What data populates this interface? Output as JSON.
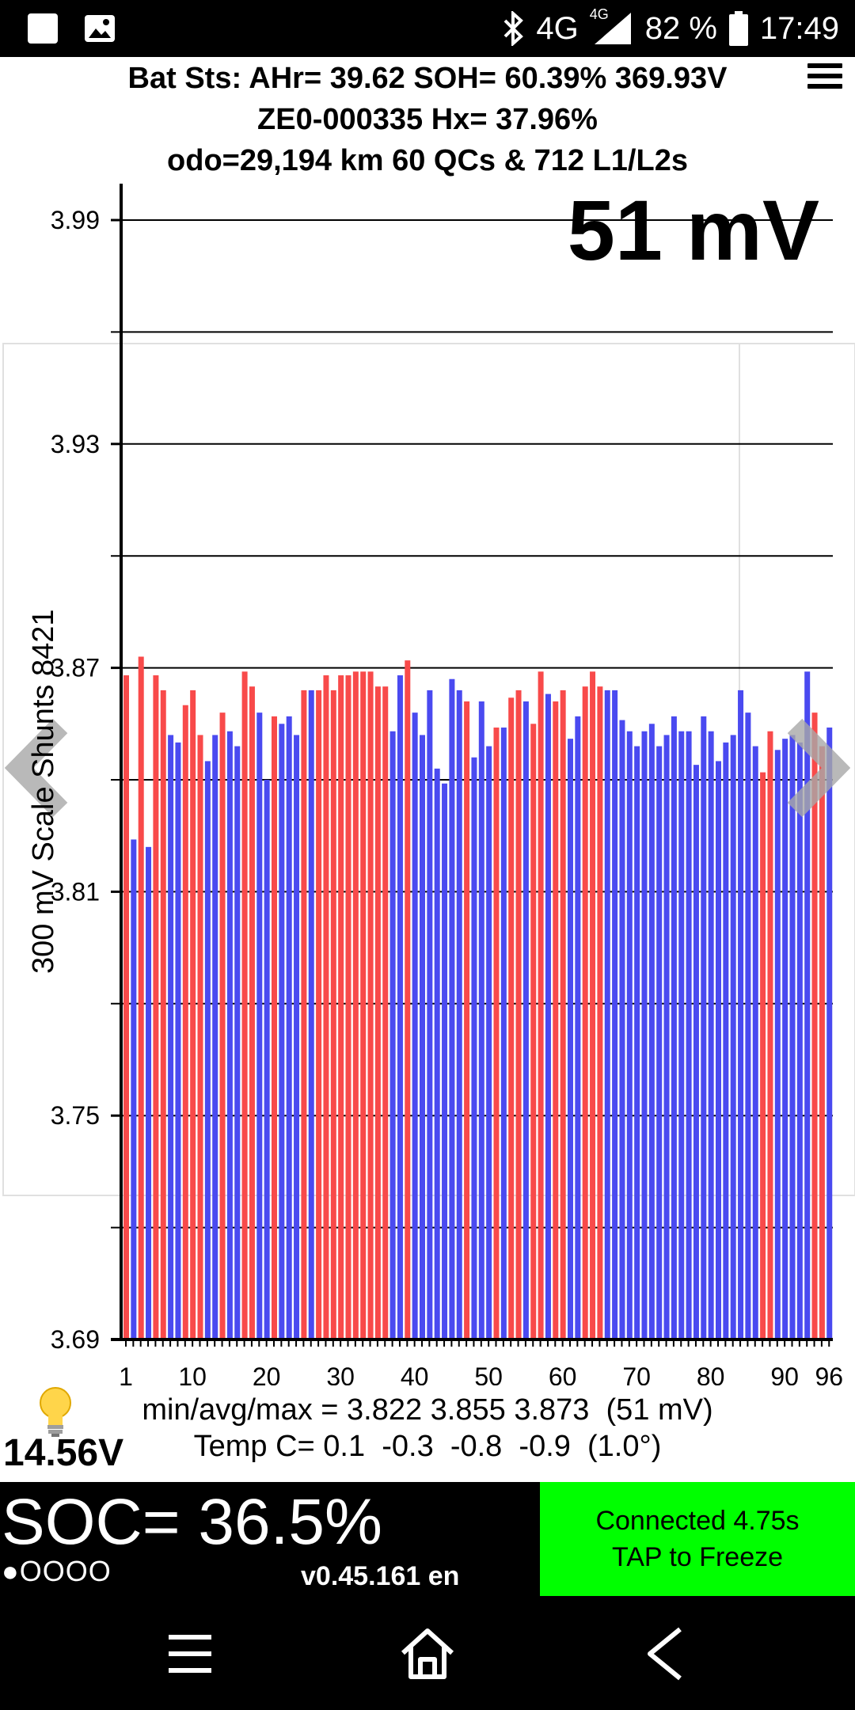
{
  "status_bar": {
    "network": "4G",
    "network_small": "4G",
    "battery": "82 %",
    "time": "17:49",
    "icons": [
      "notification-square-icon",
      "image-icon",
      "bluetooth-icon",
      "signal-icon",
      "battery-icon"
    ]
  },
  "header": {
    "line1": "Bat Sts: AHr= 39.62 SOH= 60.39% 369.93V",
    "line2": "ZE0-000335   Hx= 37.96%",
    "line3": "odo=29,194 km 60 QCs & 712 L1/L2s"
  },
  "spread_display": "51 mV",
  "stats": {
    "minavgmax": "min/avg/max = 3.822 3.855 3.873  (51 mV)",
    "temp": "Temp C= 0.1  -0.3  -0.8  -0.9  (1.0°)"
  },
  "aux_voltage": "14.56V",
  "soc": "SOC= 36.5%",
  "dots": "●OOOO",
  "version": "v0.45.161 en",
  "connection": {
    "line1": "Connected 4.75s",
    "line2": "TAP to Freeze",
    "color": "#00ff00"
  },
  "colors": {
    "red_bar": "#f84a4a",
    "blue_bar": "#4a4af0"
  },
  "chart_data": {
    "type": "bar",
    "ylabel": "300 mV Scale  Shunts 8421",
    "ylim": [
      3.69,
      4.0
    ],
    "yticks": [
      "3.99",
      "3.93",
      "3.87",
      "3.81",
      "3.75",
      "3.69"
    ],
    "xticks": [
      "1",
      "10",
      "20",
      "30",
      "40",
      "50",
      "60",
      "70",
      "80",
      "90",
      "96"
    ],
    "grid": true,
    "legend": "none",
    "x": [
      1,
      2,
      3,
      4,
      5,
      6,
      7,
      8,
      9,
      10,
      11,
      12,
      13,
      14,
      15,
      16,
      17,
      18,
      19,
      20,
      21,
      22,
      23,
      24,
      25,
      26,
      27,
      28,
      29,
      30,
      31,
      32,
      33,
      34,
      35,
      36,
      37,
      38,
      39,
      40,
      41,
      42,
      43,
      44,
      45,
      46,
      47,
      48,
      49,
      50,
      51,
      52,
      53,
      54,
      55,
      56,
      57,
      58,
      59,
      60,
      61,
      62,
      63,
      64,
      65,
      66,
      67,
      68,
      69,
      70,
      71,
      72,
      73,
      74,
      75,
      76,
      77,
      78,
      79,
      80,
      81,
      82,
      83,
      84,
      85,
      86,
      87,
      88,
      89,
      90,
      91,
      92,
      93,
      94,
      95,
      96
    ],
    "values": [
      3.868,
      3.824,
      3.873,
      3.822,
      3.868,
      3.864,
      3.852,
      3.85,
      3.86,
      3.864,
      3.852,
      3.845,
      3.852,
      3.858,
      3.853,
      3.849,
      3.869,
      3.865,
      3.858,
      3.84,
      3.857,
      3.855,
      3.857,
      3.852,
      3.864,
      3.864,
      3.864,
      3.868,
      3.864,
      3.868,
      3.868,
      3.869,
      3.869,
      3.869,
      3.865,
      3.865,
      3.853,
      3.868,
      3.872,
      3.858,
      3.852,
      3.864,
      3.843,
      3.839,
      3.867,
      3.864,
      3.861,
      3.846,
      3.861,
      3.849,
      3.854,
      3.854,
      3.862,
      3.864,
      3.861,
      3.855,
      3.869,
      3.863,
      3.861,
      3.864,
      3.851,
      3.857,
      3.865,
      3.869,
      3.865,
      3.864,
      3.864,
      3.856,
      3.853,
      3.849,
      3.853,
      3.855,
      3.849,
      3.852,
      3.857,
      3.853,
      3.853,
      3.844,
      3.857,
      3.853,
      3.845,
      3.85,
      3.852,
      3.864,
      3.858,
      3.849,
      3.842,
      3.853,
      3.848,
      3.851,
      3.852,
      3.85,
      3.869,
      3.858,
      3.849,
      3.854
    ],
    "colors": [
      "r",
      "b",
      "r",
      "b",
      "r",
      "r",
      "b",
      "b",
      "r",
      "r",
      "r",
      "b",
      "b",
      "r",
      "b",
      "b",
      "r",
      "r",
      "b",
      "b",
      "r",
      "b",
      "b",
      "b",
      "r",
      "b",
      "r",
      "r",
      "r",
      "r",
      "r",
      "r",
      "r",
      "r",
      "r",
      "r",
      "b",
      "b",
      "r",
      "b",
      "b",
      "b",
      "b",
      "b",
      "b",
      "b",
      "r",
      "b",
      "b",
      "b",
      "r",
      "b",
      "r",
      "r",
      "b",
      "r",
      "r",
      "b",
      "r",
      "r",
      "b",
      "b",
      "r",
      "r",
      "r",
      "b",
      "b",
      "b",
      "b",
      "b",
      "b",
      "b",
      "b",
      "b",
      "b",
      "b",
      "b",
      "b",
      "b",
      "b",
      "b",
      "b",
      "b",
      "b",
      "b",
      "b",
      "r",
      "r",
      "b",
      "b",
      "b",
      "b",
      "b",
      "r",
      "r",
      "b"
    ]
  }
}
